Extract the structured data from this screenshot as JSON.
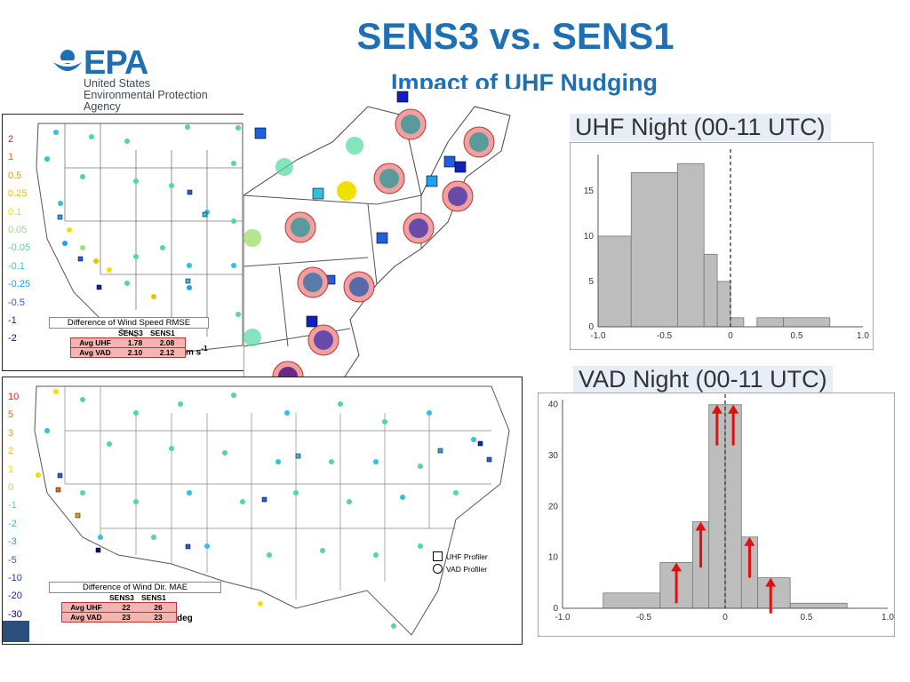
{
  "header": {
    "title": "SENS3 vs. SENS1",
    "subtitle": "Impact of UHF Nudging"
  },
  "logo": {
    "wordmark": "EPA",
    "line1": "United States",
    "line2": "Environmental Protection",
    "line3": "Agency"
  },
  "top_map": {
    "legend": [
      "2",
      "1",
      "0.5",
      "0.25",
      "0.1",
      "0.05",
      "-0.05",
      "-0.1",
      "-0.25",
      "-0.5",
      "-1",
      "-2"
    ],
    "legend_colors": [
      "#e02020",
      "#ee6a10",
      "#ee9a10",
      "#f0c000",
      "#f0e000",
      "#a0e070",
      "#50d8a0",
      "#30c0e0",
      "#20a0f0",
      "#2060e0",
      "#1020c0",
      "#100080"
    ],
    "caption": "Difference of Wind Speed RMSE",
    "col1": "SENS3",
    "col2": "SENS1",
    "row1_label": "Avg UHF",
    "row1_v1": "1.78",
    "row1_v2": "2.08",
    "row2_label": "Avg VAD",
    "row2_v1": "2.10",
    "row2_v2": "2.12",
    "units_base": "m s",
    "units_exp": "-1"
  },
  "bottom_map": {
    "legend": [
      "10",
      "5",
      "3",
      "2",
      "1",
      "0",
      "-1",
      "-2",
      "-3",
      "-5",
      "-10",
      "-20",
      "-30"
    ],
    "legend_colors": [
      "#e02020",
      "#ee6a10",
      "#ee9a10",
      "#f0c000",
      "#f0e000",
      "#a0e070",
      "#50d8a0",
      "#30c0e0",
      "#20a0f0",
      "#2060e0",
      "#1040d0",
      "#1020c0",
      "#100080"
    ],
    "caption": "Difference of Wind Dir. MAE",
    "col1": "SENS3",
    "col2": "SENS1",
    "row1_label": "Avg UHF",
    "row1_v1": "22",
    "row1_v2": "26",
    "row2_label": "Avg VAD",
    "row2_v1": "23",
    "row2_v2": "23",
    "units": "deg",
    "key_uhf": "UHF Profiler",
    "key_vad": "VAD Profiler"
  },
  "chart_data": [
    {
      "type": "bar",
      "title": "UHF Night (00-11 UTC)",
      "x_ticks": [
        "-1.0",
        "-0.5",
        "0",
        "0.5",
        "1.0"
      ],
      "y_ticks": [
        "0",
        "5",
        "10",
        "15"
      ],
      "xlim": [
        -1.0,
        1.0
      ],
      "ylim": [
        0,
        19
      ],
      "bin_edges": [
        -1.0,
        -0.75,
        -0.4,
        -0.2,
        -0.1,
        0,
        0.1,
        0.2,
        0.4,
        0.75,
        1.0
      ],
      "values": [
        10,
        17,
        18,
        8,
        5,
        1,
        0,
        1,
        1,
        0
      ],
      "reference_line_x": 0
    },
    {
      "type": "bar",
      "title": "VAD Night (00-11 UTC)",
      "x_ticks": [
        "-1.0",
        "-0.5",
        "0",
        "0.5",
        "1.0"
      ],
      "y_ticks": [
        "0",
        "10",
        "20",
        "30",
        "40"
      ],
      "xlim": [
        -1.0,
        1.0
      ],
      "ylim": [
        0,
        41
      ],
      "bin_edges": [
        -1.1,
        -0.75,
        -0.4,
        -0.2,
        -0.1,
        0,
        0.1,
        0.2,
        0.4,
        0.75,
        1.1
      ],
      "values": [
        0,
        3,
        9,
        17,
        40,
        40,
        14,
        6,
        1,
        0
      ],
      "reference_line_x": 0
    }
  ]
}
